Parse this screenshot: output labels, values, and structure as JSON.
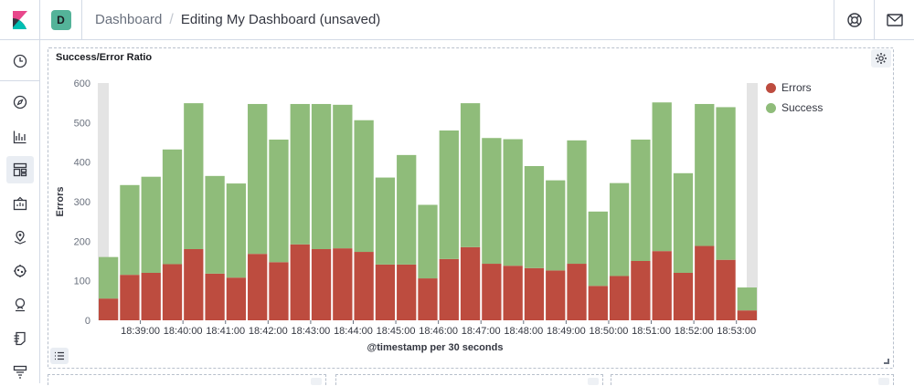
{
  "header": {
    "space_initial": "D",
    "breadcrumb_parent": "Dashboard",
    "breadcrumb_current": "Editing My Dashboard (unsaved)",
    "colors": {
      "logo_pink": "#e8478b",
      "logo_teal": "#00bfb3",
      "logo_dark": "#343741",
      "space": "#54b399"
    }
  },
  "sidenav": {
    "items": [
      {
        "name": "recently-viewed",
        "icon": "clock-icon"
      },
      {
        "name": "discover",
        "icon": "compass-icon"
      },
      {
        "name": "visualize",
        "icon": "chart-icon"
      },
      {
        "name": "dashboard",
        "icon": "dashboard-icon",
        "active": true
      },
      {
        "name": "canvas",
        "icon": "canvas-icon"
      },
      {
        "name": "maps",
        "icon": "map-icon"
      },
      {
        "name": "ml",
        "icon": "ml-icon"
      },
      {
        "name": "infrastructure",
        "icon": "infra-icon"
      },
      {
        "name": "logs",
        "icon": "logs-icon"
      },
      {
        "name": "apm",
        "icon": "apm-icon"
      }
    ]
  },
  "panel": {
    "title": "Success/Error Ratio",
    "legend": [
      {
        "label": "Errors",
        "color": "#bd4c3f"
      },
      {
        "label": "Success",
        "color": "#8fbc7a"
      }
    ]
  },
  "chart_data": {
    "type": "bar",
    "stacked": true,
    "title": "Success/Error Ratio",
    "xlabel": "@timestamp per 30 seconds",
    "ylabel": "Errors",
    "ylim": [
      0,
      600
    ],
    "yticks": [
      "0",
      "100",
      "200",
      "300",
      "400",
      "500",
      "600"
    ],
    "xticks": [
      "18:39:00",
      "18:40:00",
      "18:41:00",
      "18:42:00",
      "18:43:00",
      "18:44:00",
      "18:45:00",
      "18:46:00",
      "18:47:00",
      "18:48:00",
      "18:49:00",
      "18:50:00",
      "18:51:00",
      "18:52:00",
      "18:53:00"
    ],
    "grid": true,
    "legend_position": "right",
    "series": [
      {
        "name": "Errors",
        "color": "#bd4c3f",
        "values": [
          55,
          115,
          120,
          142,
          180,
          118,
          108,
          168,
          147,
          192,
          180,
          182,
          173,
          141,
          141,
          106,
          155,
          185,
          143,
          138,
          132,
          126,
          143,
          87,
          112,
          150,
          175,
          120,
          188,
          153,
          25
        ]
      },
      {
        "name": "Success",
        "color": "#8fbc7a",
        "values": [
          105,
          227,
          243,
          290,
          369,
          247,
          238,
          379,
          310,
          355,
          367,
          363,
          333,
          220,
          277,
          186,
          325,
          364,
          318,
          320,
          258,
          228,
          312,
          188,
          235,
          307,
          376,
          252,
          359,
          386,
          58
        ]
      }
    ]
  }
}
